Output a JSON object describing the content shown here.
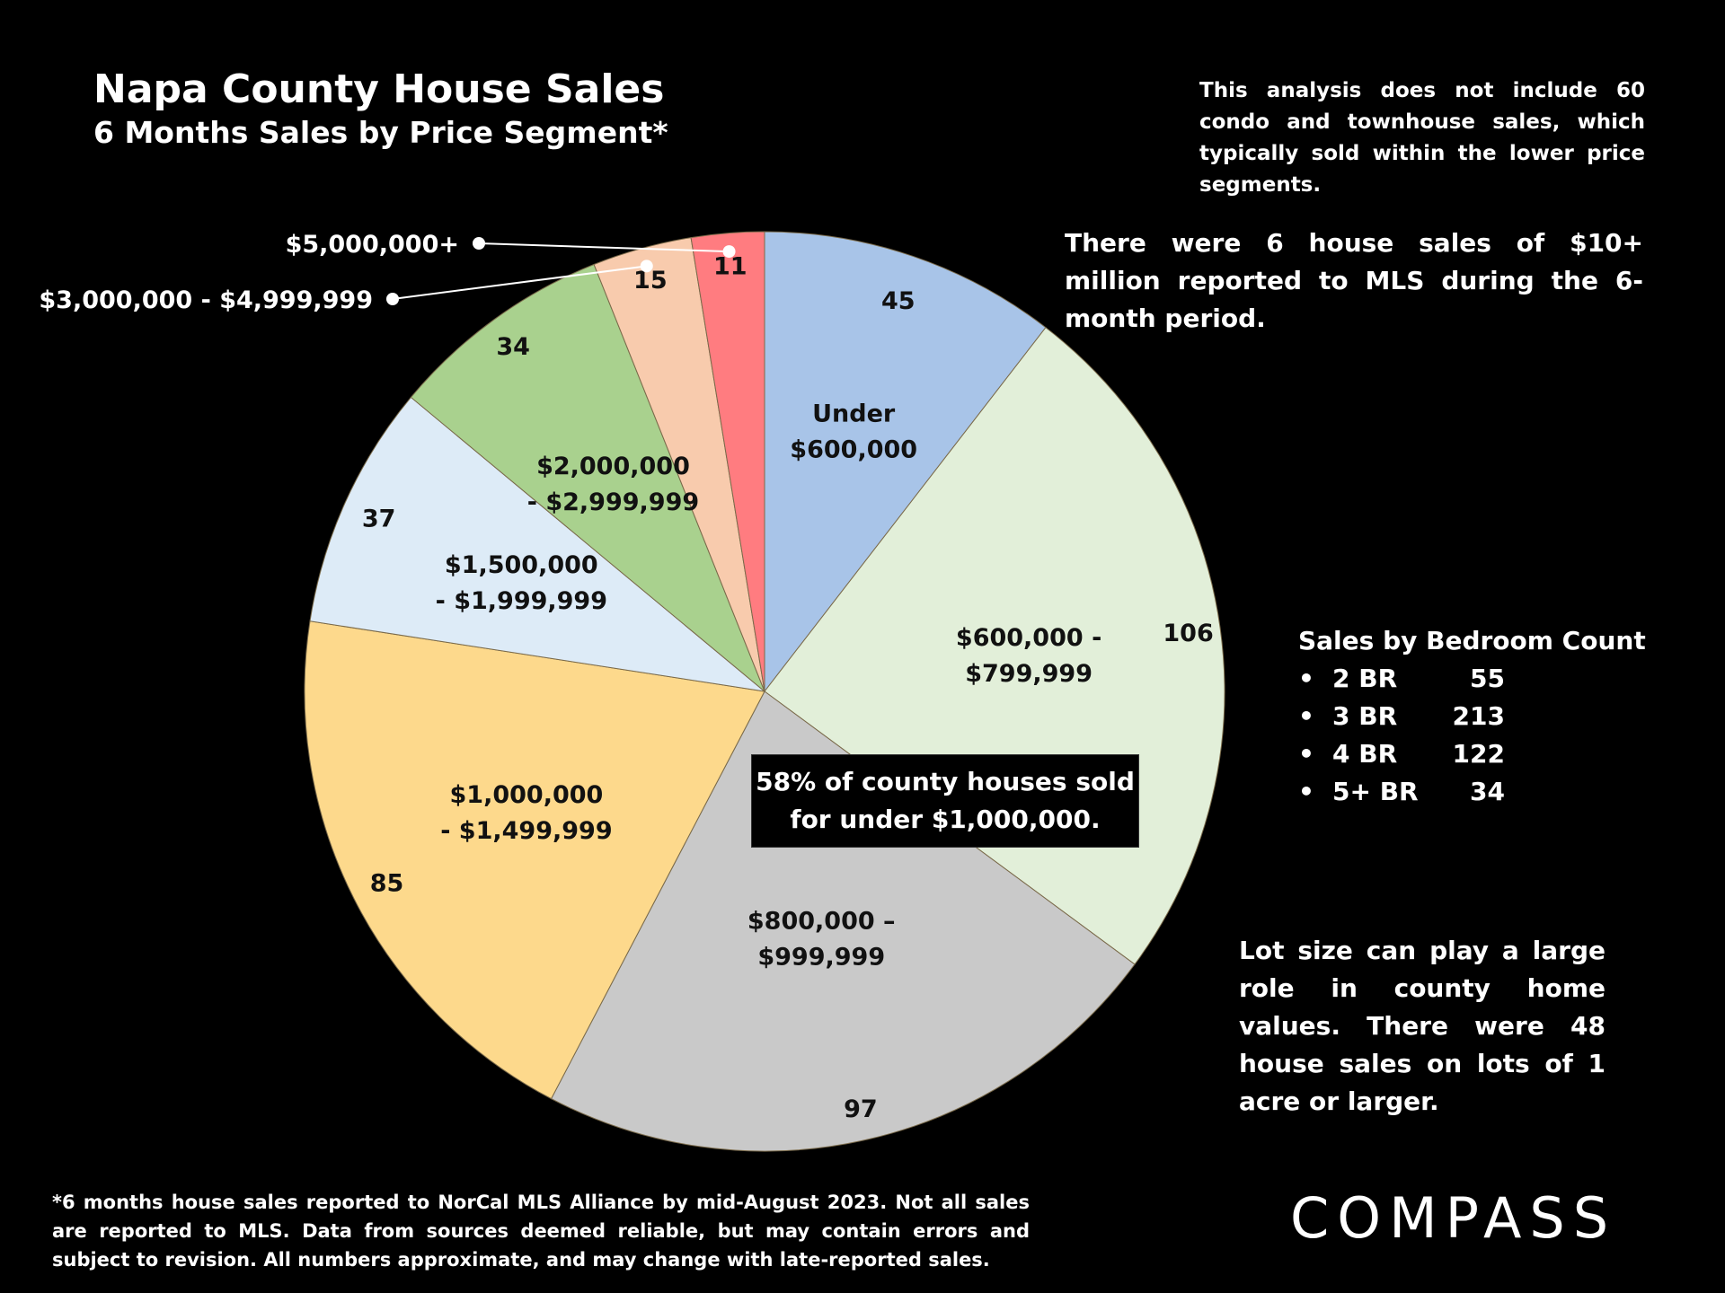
{
  "chart_data": {
    "type": "pie",
    "title": "Napa County House Sales",
    "subtitle": "6 Months Sales by Price Segment*",
    "start": "12 o'clock, clockwise",
    "slices": [
      {
        "label": "Under $600,000",
        "label_lines": [
          "Under",
          "$600,000"
        ],
        "value": 45,
        "color": "#a8c4e8"
      },
      {
        "label": "$600,000 - $799,999",
        "label_lines": [
          "$600,000 -",
          "$799,999"
        ],
        "value": 106,
        "color": "#e2efd9"
      },
      {
        "label": "$800,000 – $999,999",
        "label_lines": [
          "$800,000 –",
          "$999,999"
        ],
        "value": 97,
        "color": "#c9c9c9"
      },
      {
        "label": "$1,000,000 - $1,499,999",
        "label_lines": [
          "$1,000,000",
          "- $1,499,999"
        ],
        "value": 85,
        "color": "#fdd98c"
      },
      {
        "label": "$1,500,000 - $1,999,999",
        "label_lines": [
          "$1,500,000",
          "- $1,999,999"
        ],
        "value": 37,
        "color": "#ddebf7"
      },
      {
        "label": "$2,000,000 - $2,999,999",
        "label_lines": [
          "$2,000,000",
          "- $2,999,999"
        ],
        "value": 34,
        "color": "#a9d18e"
      },
      {
        "label": "$3,000,000 - $4,999,999",
        "label_lines": [
          "$3,000,000 - $4,999,999"
        ],
        "value": 15,
        "color": "#f8cbad"
      },
      {
        "label": "$5,000,000+",
        "label_lines": [
          "$5,000,000+"
        ],
        "value": 11,
        "color": "#ff7c80"
      }
    ]
  },
  "notes": {
    "condo": "This analysis does not include 60 condo and townhouse sales, which typically sold within the lower price segments.",
    "ten_million": "There were 6 house sales of $10+ million reported to MLS during the 6-month period.",
    "callout_line1": "58% of county houses sold",
    "callout_line2": "for under $1,000,000.",
    "lot_size": "Lot size can play a large role in county home values. There were 48 house sales on lots of 1 acre or larger.",
    "footnote": "*6 months house sales reported to NorCal MLS Alliance by mid-August 2023. Not all sales are reported to MLS. Data from sources deemed reliable, but may contain errors and subject to revision. All numbers approximate, and may change with late-reported sales."
  },
  "bedroom": {
    "heading": "Sales by Bedroom Count",
    "items": [
      {
        "label": "2 BR",
        "count": "55"
      },
      {
        "label": "3 BR",
        "count": "213"
      },
      {
        "label": "4 BR",
        "count": "122"
      },
      {
        "label": "5+ BR",
        "count": "34"
      }
    ]
  },
  "brand": {
    "logo_text": "COMPASS",
    "bullet": "•"
  }
}
